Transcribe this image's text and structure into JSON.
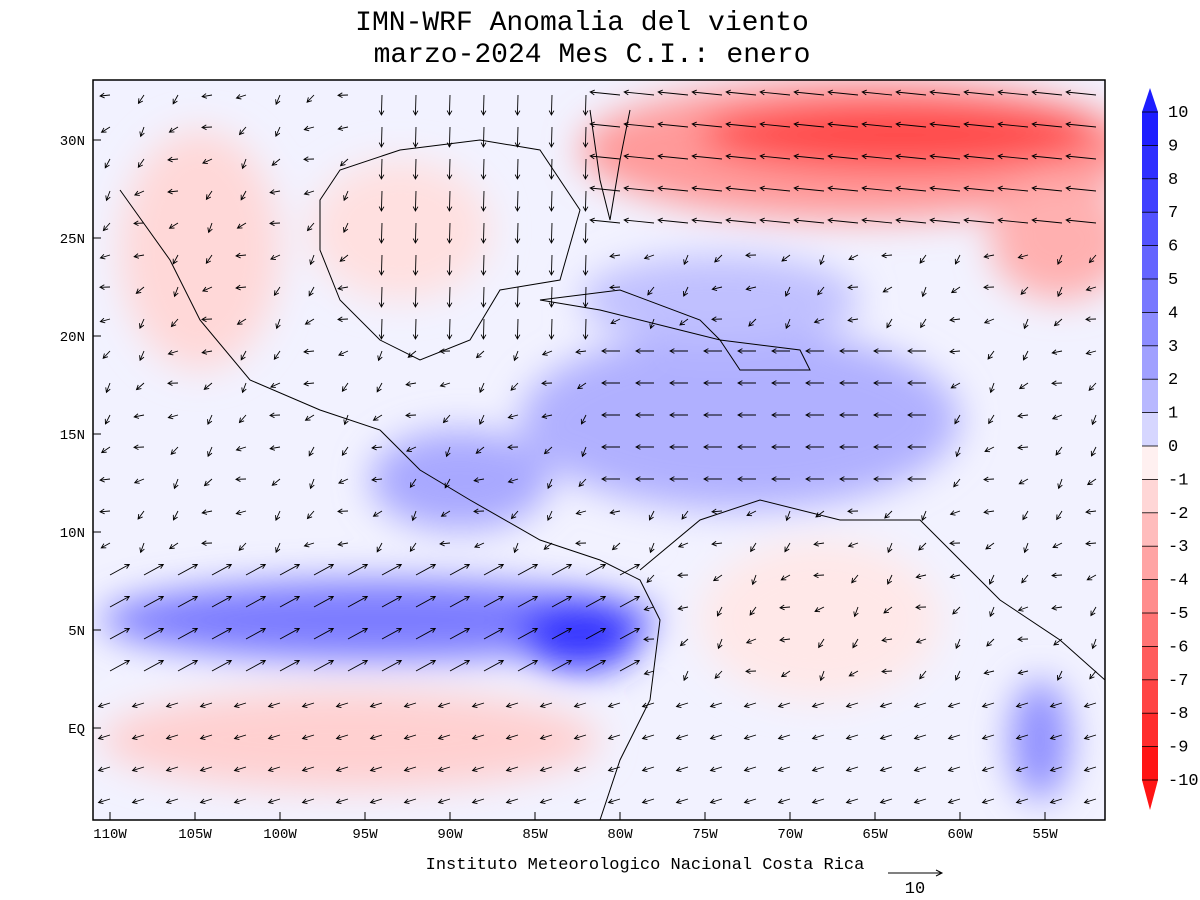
{
  "title": [
    "IMN-WRF Anomalia del viento",
    "marzo-2024 Mes C.I.: enero"
  ],
  "x_axis": {
    "ticks": [
      "110W",
      "105W",
      "100W",
      "95W",
      "90W",
      "85W",
      "80W",
      "75W",
      "70W",
      "65W",
      "60W",
      "55W"
    ]
  },
  "y_axis": {
    "ticks": [
      "EQ",
      "5N",
      "10N",
      "15N",
      "20N",
      "25N",
      "30N"
    ]
  },
  "colorbar": {
    "labels": [
      10,
      9,
      8,
      7,
      6,
      5,
      4,
      3,
      2,
      1,
      0,
      -1,
      -2,
      -3,
      -4,
      -5,
      -6,
      -7,
      -8,
      -9,
      -10
    ],
    "colors": [
      "#1e1eff",
      "#2e2eff",
      "#4040ff",
      "#5252ff",
      "#6464ff",
      "#7878ff",
      "#8c8cff",
      "#a0a0ff",
      "#b8b8ff",
      "#d6d6ff",
      "#f2f2ff",
      "#fff0f0",
      "#ffd6d6",
      "#ffbcbc",
      "#ffa4a4",
      "#ff8c8c",
      "#ff7474",
      "#ff5c5c",
      "#ff4444",
      "#ff2c2c",
      "#ff1414"
    ]
  },
  "footer": "Instituto Meteorologico Nacional Costa Rica",
  "reference_vector": {
    "label": 10
  }
}
